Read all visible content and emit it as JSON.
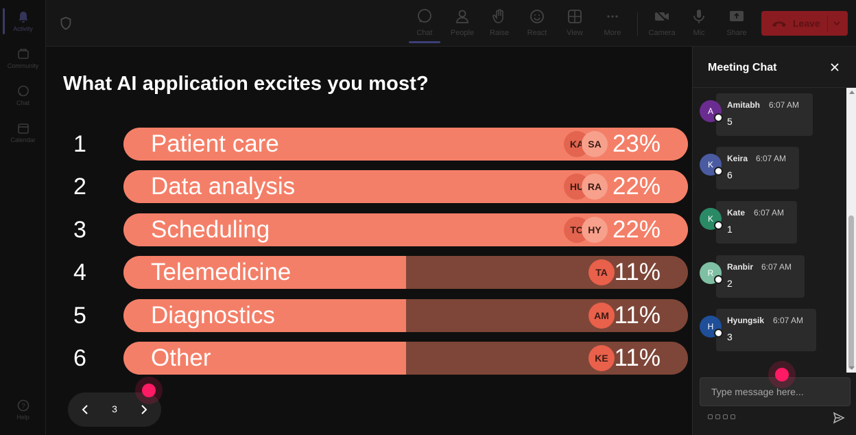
{
  "rail": {
    "items": [
      {
        "label": "Activity",
        "icon": "bell-icon",
        "active": true
      },
      {
        "label": "Community",
        "icon": "community-icon",
        "active": false
      },
      {
        "label": "Chat",
        "icon": "chat-icon",
        "active": false
      },
      {
        "label": "Calendar",
        "icon": "calendar-icon",
        "active": false
      }
    ],
    "help_label": "Help"
  },
  "toolbar": {
    "items": [
      {
        "label": "Chat",
        "icon": "chat-icon",
        "active": true
      },
      {
        "label": "People",
        "icon": "people-icon",
        "active": false
      },
      {
        "label": "Raise",
        "icon": "raise-hand-icon",
        "active": false
      },
      {
        "label": "React",
        "icon": "react-icon",
        "active": false
      },
      {
        "label": "View",
        "icon": "view-icon",
        "active": false
      },
      {
        "label": "More",
        "icon": "more-icon",
        "active": false
      },
      {
        "label": "Camera",
        "icon": "camera-off-icon",
        "active": false
      },
      {
        "label": "Mic",
        "icon": "mic-icon",
        "active": false
      },
      {
        "label": "Share",
        "icon": "share-icon",
        "active": false
      }
    ],
    "leave_label": "Leave",
    "leave_color": "#8a1b20"
  },
  "poll": {
    "question": "What AI application excites you most?",
    "bar_color": "#f47f68",
    "bar_track_color": "#7e4638",
    "options": [
      {
        "num": "1",
        "label": "Patient care",
        "percent": "23%",
        "fill": 100,
        "voters": [
          "KA",
          "SA"
        ]
      },
      {
        "num": "2",
        "label": "Data analysis",
        "percent": "22%",
        "fill": 100,
        "voters": [
          "HU",
          "RA"
        ]
      },
      {
        "num": "3",
        "label": "Scheduling",
        "percent": "22%",
        "fill": 100,
        "voters": [
          "TO",
          "HY"
        ]
      },
      {
        "num": "4",
        "label": "Telemedicine",
        "percent": "11%",
        "fill": 50,
        "voters": [
          "TA"
        ]
      },
      {
        "num": "5",
        "label": "Diagnostics",
        "percent": "11%",
        "fill": 50,
        "voters": [
          "AM"
        ]
      },
      {
        "num": "6",
        "label": "Other",
        "percent": "11%",
        "fill": 50,
        "voters": [
          "KE"
        ]
      }
    ]
  },
  "pager": {
    "page": "3"
  },
  "chat": {
    "title": "Meeting Chat",
    "placeholder": "Type message here...",
    "messages": [
      {
        "initial": "A",
        "name": "Amitabh",
        "time": "6:07 AM",
        "text": "5",
        "color": "#6b2c91"
      },
      {
        "initial": "K",
        "name": "Keira",
        "time": "6:07 AM",
        "text": "6",
        "color": "#4a5ba1"
      },
      {
        "initial": "K",
        "name": "Kate",
        "time": "6:07 AM",
        "text": "1",
        "color": "#2a8a66"
      },
      {
        "initial": "R",
        "name": "Ranbir",
        "time": "6:07 AM",
        "text": "2",
        "color": "#7fbfa3"
      },
      {
        "initial": "H",
        "name": "Hyungsik",
        "time": "6:07 AM",
        "text": "3",
        "color": "#1f4f99"
      }
    ]
  }
}
